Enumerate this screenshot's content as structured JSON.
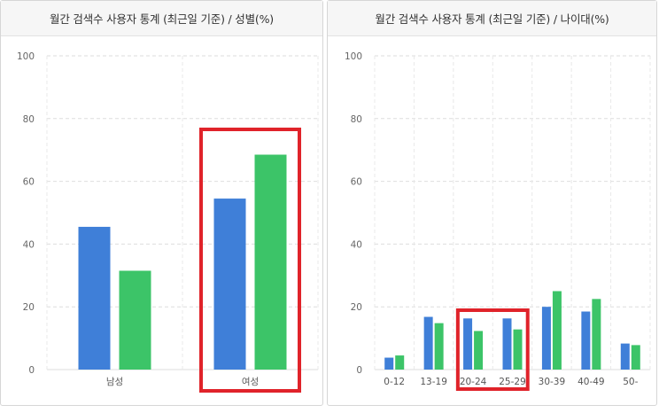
{
  "colors": {
    "series_a": "#3f7fd8",
    "series_b": "#3cc468",
    "highlight": "#e0232a",
    "grid": "#dedede"
  },
  "chart_data": [
    {
      "type": "bar",
      "title": "월간 검색수 사용자 통계 (최근일 기준) / 성별(%)",
      "categories": [
        "남성",
        "여성"
      ],
      "series": [
        {
          "values": [
            45.5,
            54.5
          ]
        },
        {
          "values": [
            31.5,
            68.5
          ]
        }
      ],
      "ylim": [
        0,
        100
      ],
      "yticks": [
        0,
        20,
        40,
        60,
        80,
        100
      ],
      "grid": true,
      "highlighted_categories": [
        "여성"
      ]
    },
    {
      "type": "bar",
      "title": "월간 검색수 사용자 통계 (최근일 기준) / 나이대(%)",
      "categories": [
        "0-12",
        "13-19",
        "20-24",
        "25-29",
        "30-39",
        "40-49",
        "50-"
      ],
      "series": [
        {
          "values": [
            3.8,
            16.8,
            16.3,
            16.3,
            20.0,
            18.5,
            8.3
          ]
        },
        {
          "values": [
            4.5,
            14.8,
            12.3,
            12.8,
            25.0,
            22.5,
            7.8
          ]
        }
      ],
      "ylim": [
        0,
        100
      ],
      "yticks": [
        0,
        20,
        40,
        60,
        80,
        100
      ],
      "grid": true,
      "highlighted_categories": [
        "20-24",
        "25-29"
      ]
    }
  ]
}
